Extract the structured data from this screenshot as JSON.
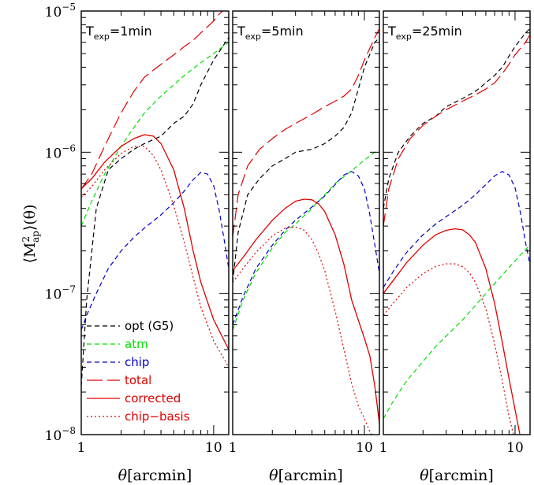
{
  "chart_data": {
    "type": "line",
    "ylabel_main": "⟨M",
    "ylabel_sup": "2",
    "ylabel_sub": "ap",
    "ylabel_tail": "⟩(θ)",
    "yscale": "log",
    "xscale": "log",
    "ylim": [
      1e-08,
      1e-05
    ],
    "xlim": [
      1,
      13
    ],
    "yticks": [
      {
        "value": 1e-08,
        "base": "10",
        "exp": "−8"
      },
      {
        "value": 1e-07,
        "base": "10",
        "exp": "−7"
      },
      {
        "value": 1e-06,
        "base": "10",
        "exp": "−6"
      },
      {
        "value": 1e-05,
        "base": "10",
        "exp": "−5"
      }
    ],
    "xticks": [
      {
        "value": 1,
        "label": "1"
      },
      {
        "value": 10,
        "label": "10"
      }
    ],
    "legend": {
      "placement": "bottom-left of first panel",
      "entries": [
        {
          "key": "opt",
          "label": "opt (G5)",
          "color": "#000000",
          "dash": "short"
        },
        {
          "key": "atm",
          "label": "atm",
          "color": "#00e000",
          "dash": "short"
        },
        {
          "key": "chip",
          "label": "chip",
          "color": "#0000cc",
          "dash": "short"
        },
        {
          "key": "total",
          "label": "total",
          "color": "#e00000",
          "dash": "long"
        },
        {
          "key": "corrected",
          "label": "corrected",
          "color": "#e00000",
          "dash": "solid"
        },
        {
          "key": "chipbasis",
          "label": "chip−basis",
          "color": "#e00000",
          "dash": "dot"
        }
      ]
    },
    "panels": [
      {
        "title_main": "T",
        "title_sub": "exp",
        "title_tail": "=1min",
        "xlabel_main": "θ",
        "xlabel_tail": "[arcmin]",
        "series": [
          {
            "key": "opt",
            "x": [
              1.0,
              1.1,
              1.3,
              1.6,
              2.0,
              2.5,
              3.0,
              4.0,
              5.0,
              6.0,
              7.0,
              8.0,
              10.0,
              13.0
            ],
            "y": [
              2.2e-08,
              9e-08,
              4e-07,
              7.5e-07,
              9e-07,
              1.05e-06,
              1.15e-06,
              1.3e-06,
              1.6e-06,
              1.8e-06,
              2.2e-06,
              3e-06,
              4.5e-06,
              6.5e-06
            ]
          },
          {
            "key": "atm",
            "x": [
              1.0,
              1.2,
              1.5,
              2.0,
              2.5,
              3.0,
              4.0,
              5.0,
              6.0,
              8.0,
              10.0,
              13.0
            ],
            "y": [
              3e-07,
              4.5e-07,
              7e-07,
              1.1e-06,
              1.5e-06,
              1.9e-06,
              2.5e-06,
              3e-06,
              3.5e-06,
              4.3e-06,
              5e-06,
              6e-06
            ]
          },
          {
            "key": "chip",
            "x": [
              1.0,
              1.1,
              1.3,
              1.6,
              2.0,
              2.5,
              3.0,
              4.0,
              5.0,
              6.0,
              7.0,
              8.0,
              9.0,
              10.0,
              11.0,
              12.0,
              13.0
            ],
            "y": [
              5.5e-08,
              7e-08,
              1e-07,
              1.5e-07,
              2e-07,
              2.5e-07,
              2.9e-07,
              3.6e-07,
              4.4e-07,
              5.3e-07,
              6.4e-07,
              7.2e-07,
              7e-07,
              5.8e-07,
              3.9e-07,
              2.4e-07,
              1.5e-07
            ]
          },
          {
            "key": "total",
            "x": [
              1.0,
              1.2,
              1.5,
              2.0,
              2.5,
              3.0,
              4.0,
              5.0,
              6.0,
              7.0,
              8.0,
              10.0,
              11.0,
              13.0
            ],
            "y": [
              5.5e-07,
              7e-07,
              1.1e-06,
              1.9e-06,
              2.7e-06,
              3.4e-06,
              4.2e-06,
              4.9e-06,
              5.6e-06,
              6.2e-06,
              7e-06,
              8.5e-06,
              9.5e-06,
              1.1e-05
            ]
          },
          {
            "key": "corrected",
            "x": [
              1.0,
              1.2,
              1.5,
              2.0,
              2.5,
              3.0,
              3.5,
              4.0,
              5.0,
              6.0,
              7.0,
              8.0,
              10.0,
              13.0
            ],
            "y": [
              5.5e-07,
              6.5e-07,
              8.5e-07,
              1.1e-06,
              1.25e-06,
              1.33e-06,
              1.3e-06,
              1.15e-06,
              7.5e-07,
              4e-07,
              2e-07,
              1.2e-07,
              6.5e-08,
              4e-08
            ]
          },
          {
            "key": "chipbasis",
            "x": [
              1.0,
              1.2,
              1.5,
              2.0,
              2.5,
              3.0,
              3.5,
              4.0,
              5.0,
              6.0,
              7.0,
              8.0,
              10.0,
              13.0
            ],
            "y": [
              4.8e-07,
              5.7e-07,
              7.5e-07,
              9.8e-07,
              1.1e-06,
              1.1e-06,
              9.5e-07,
              7.5e-07,
              4.2e-07,
              2.3e-07,
              1.3e-07,
              8e-08,
              4.6e-08,
              3e-08
            ]
          }
        ]
      },
      {
        "title_main": "T",
        "title_sub": "exp",
        "title_tail": "=5min",
        "xlabel_main": "θ",
        "xlabel_tail": "[arcmin]",
        "series": [
          {
            "key": "opt",
            "x": [
              1.0,
              1.1,
              1.3,
              1.6,
              2.0,
              2.5,
              3.0,
              4.0,
              5.0,
              6.0,
              7.0,
              8.0,
              9.0,
              10.0,
              12.0,
              13.0
            ],
            "y": [
              1.2e-07,
              2.7e-07,
              5e-07,
              6.5e-07,
              8e-07,
              9e-07,
              1e-06,
              1.05e-06,
              1.15e-06,
              1.3e-06,
              1.5e-06,
              1.9e-06,
              2.8e-06,
              4e-06,
              6e-06,
              6.5e-06
            ]
          },
          {
            "key": "atm",
            "x": [
              1.0,
              1.2,
              1.5,
              2.0,
              2.5,
              3.0,
              4.0,
              5.0,
              6.0,
              8.0,
              10.0,
              12.0,
              13.0
            ],
            "y": [
              5.5e-08,
              9e-08,
              1.4e-07,
              2.1e-07,
              2.7e-07,
              3.1e-07,
              4e-07,
              5e-07,
              6e-07,
              7.4e-07,
              8.8e-07,
              1e-06,
              1.02e-06
            ]
          },
          {
            "key": "chip",
            "x": [
              1.0,
              1.2,
              1.5,
              2.0,
              2.5,
              3.0,
              4.0,
              5.0,
              6.0,
              7.0,
              8.0,
              9.0,
              10.0,
              11.0,
              12.0,
              13.0
            ],
            "y": [
              6e-08,
              9.5e-08,
              1.5e-07,
              2.2e-07,
              2.8e-07,
              3.3e-07,
              4.1e-07,
              4.9e-07,
              5.9e-07,
              6.9e-07,
              7.3e-07,
              6.8e-07,
              5.5e-07,
              3.6e-07,
              2.2e-07,
              1.4e-07
            ]
          },
          {
            "key": "total",
            "x": [
              1.0,
              1.1,
              1.3,
              1.6,
              2.0,
              2.5,
              3.0,
              4.0,
              5.0,
              6.0,
              7.0,
              8.0,
              9.0,
              10.0,
              12.0,
              13.0
            ],
            "y": [
              2.5e-07,
              5e-07,
              8e-07,
              1.05e-06,
              1.25e-06,
              1.45e-06,
              1.6e-06,
              1.85e-06,
              2.1e-06,
              2.3e-06,
              2.5e-06,
              2.8e-06,
              3.5e-06,
              4.5e-06,
              6.5e-06,
              7.5e-06
            ]
          },
          {
            "key": "corrected",
            "x": [
              1.0,
              1.2,
              1.5,
              2.0,
              2.5,
              3.0,
              3.5,
              4.0,
              4.5,
              5.0,
              6.0,
              7.0,
              8.0,
              10.0,
              11.0,
              12.0,
              13.0
            ],
            "y": [
              1.45e-07,
              1.8e-07,
              2.4e-07,
              3.3e-07,
              4e-07,
              4.5e-07,
              4.65e-07,
              4.6e-07,
              4.3e-07,
              3.8e-07,
              2.6e-07,
              1.6e-07,
              9e-08,
              4.8e-08,
              3.6e-08,
              2.2e-08,
              1.2e-08
            ]
          },
          {
            "key": "chipbasis",
            "x": [
              1.0,
              1.2,
              1.5,
              2.0,
              2.5,
              3.0,
              3.5,
              4.0,
              4.5,
              5.0,
              6.0,
              7.0,
              8.0,
              9.0,
              10.0,
              11.0,
              12.0
            ],
            "y": [
              1.2e-07,
              1.5e-07,
              1.95e-07,
              2.55e-07,
              2.9e-07,
              2.95e-07,
              2.8e-07,
              2.4e-07,
              1.9e-07,
              1.45e-07,
              7.5e-08,
              4e-08,
              2.3e-08,
              1.6e-08,
              1.3e-08,
              1.05e-08,
              9e-09
            ]
          }
        ]
      },
      {
        "title_main": "T",
        "title_sub": "exp",
        "title_tail": "=25min",
        "xlabel_main": "θ",
        "xlabel_tail": "[arcmin]",
        "series": [
          {
            "key": "opt",
            "x": [
              1.0,
              1.1,
              1.3,
              1.6,
              2.0,
              2.5,
              3.0,
              4.0,
              5.0,
              6.0,
              7.0,
              8.0,
              9.0,
              10.0,
              12.0,
              13.0
            ],
            "y": [
              4e-07,
              6.5e-07,
              1e-06,
              1.3e-06,
              1.6e-06,
              1.8e-06,
              2.1e-06,
              2.4e-06,
              2.7e-06,
              3.1e-06,
              3.5e-06,
              4e-06,
              4.8e-06,
              5.6e-06,
              7e-06,
              7.5e-06
            ]
          },
          {
            "key": "atm",
            "x": [
              1.0,
              1.2,
              1.5,
              2.0,
              2.5,
              3.0,
              4.0,
              5.0,
              6.0,
              8.0,
              10.0,
              12.0,
              13.0
            ],
            "y": [
              1.3e-08,
              1.75e-08,
              2.4e-08,
              3.3e-08,
              4.2e-08,
              5e-08,
              6.5e-08,
              8.2e-08,
              1e-07,
              1.35e-07,
              1.7e-07,
              2.05e-07,
              2.2e-07
            ]
          },
          {
            "key": "chip",
            "x": [
              1.0,
              1.2,
              1.5,
              2.0,
              2.5,
              3.0,
              4.0,
              5.0,
              6.0,
              7.0,
              8.0,
              9.0,
              10.0,
              11.0,
              12.0,
              13.0
            ],
            "y": [
              1.1e-07,
              1.45e-07,
              1.95e-07,
              2.6e-07,
              3.1e-07,
              3.5e-07,
              4.2e-07,
              5e-07,
              5.9e-07,
              6.8e-07,
              7.3e-07,
              6.9e-07,
              5.6e-07,
              3.7e-07,
              2.3e-07,
              1.6e-07
            ]
          },
          {
            "key": "total",
            "x": [
              1.0,
              1.1,
              1.3,
              1.6,
              2.0,
              2.5,
              3.0,
              4.0,
              5.0,
              6.0,
              7.0,
              8.0,
              9.0,
              10.0,
              12.0,
              13.0
            ],
            "y": [
              3e-07,
              5.5e-07,
              9e-07,
              1.25e-06,
              1.55e-06,
              1.8e-06,
              2e-06,
              2.3e-06,
              2.55e-06,
              2.8e-06,
              3.1e-06,
              3.6e-06,
              4.2e-06,
              4.9e-06,
              6e-06,
              6.8e-06
            ]
          },
          {
            "key": "corrected",
            "x": [
              1.0,
              1.2,
              1.5,
              2.0,
              2.5,
              3.0,
              3.5,
              4.0,
              4.5,
              5.0,
              6.0,
              7.0,
              8.0,
              9.0,
              10.0,
              11.0
            ],
            "y": [
              1e-07,
              1.25e-07,
              1.65e-07,
              2.2e-07,
              2.6e-07,
              2.8e-07,
              2.87e-07,
              2.82e-07,
              2.6e-07,
              2.3e-07,
              1.5e-07,
              8.5e-08,
              4.5e-08,
              2.5e-08,
              1.5e-08,
              9.5e-09
            ]
          },
          {
            "key": "chipbasis",
            "x": [
              1.0,
              1.2,
              1.5,
              2.0,
              2.5,
              3.0,
              3.5,
              4.0,
              4.5,
              5.0,
              6.0,
              7.0,
              8.0,
              9.0,
              10.0
            ],
            "y": [
              7e-08,
              8.6e-08,
              1.1e-07,
              1.38e-07,
              1.55e-07,
              1.62e-07,
              1.62e-07,
              1.55e-07,
              1.4e-07,
              1.2e-07,
              7.8e-08,
              4.4e-08,
              2.4e-08,
              1.35e-08,
              9e-09
            ]
          }
        ]
      }
    ]
  }
}
